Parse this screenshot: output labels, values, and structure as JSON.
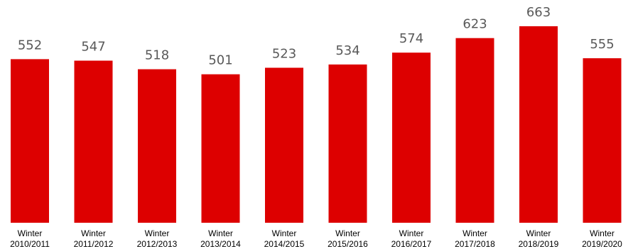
{
  "chart_data": {
    "type": "bar",
    "categories": [
      [
        "Winter",
        "2010/2011"
      ],
      [
        "Winter",
        "2011/2012"
      ],
      [
        "Winter",
        "2012/2013"
      ],
      [
        "Winter",
        "2013/2014"
      ],
      [
        "Winter",
        "2014/2015"
      ],
      [
        "Winter",
        "2015/2016"
      ],
      [
        "Winter",
        "2016/2017"
      ],
      [
        "Winter",
        "2017/2018"
      ],
      [
        "Winter",
        "2018/2019"
      ],
      [
        "Winter",
        "2019/2020"
      ]
    ],
    "values": [
      552,
      547,
      518,
      501,
      523,
      534,
      574,
      623,
      663,
      555
    ],
    "data_labels": [
      "552",
      "547",
      "518",
      "501",
      "523",
      "534",
      "574",
      "623",
      "663",
      "555"
    ],
    "title": "",
    "xlabel": "",
    "ylabel": "",
    "ylim": [
      0,
      663
    ],
    "grid": false,
    "legend": "none",
    "colors": {
      "bar": "#dd0000",
      "value_label": "#595959",
      "tick_label": "#000000",
      "background": "#ffffff"
    }
  }
}
